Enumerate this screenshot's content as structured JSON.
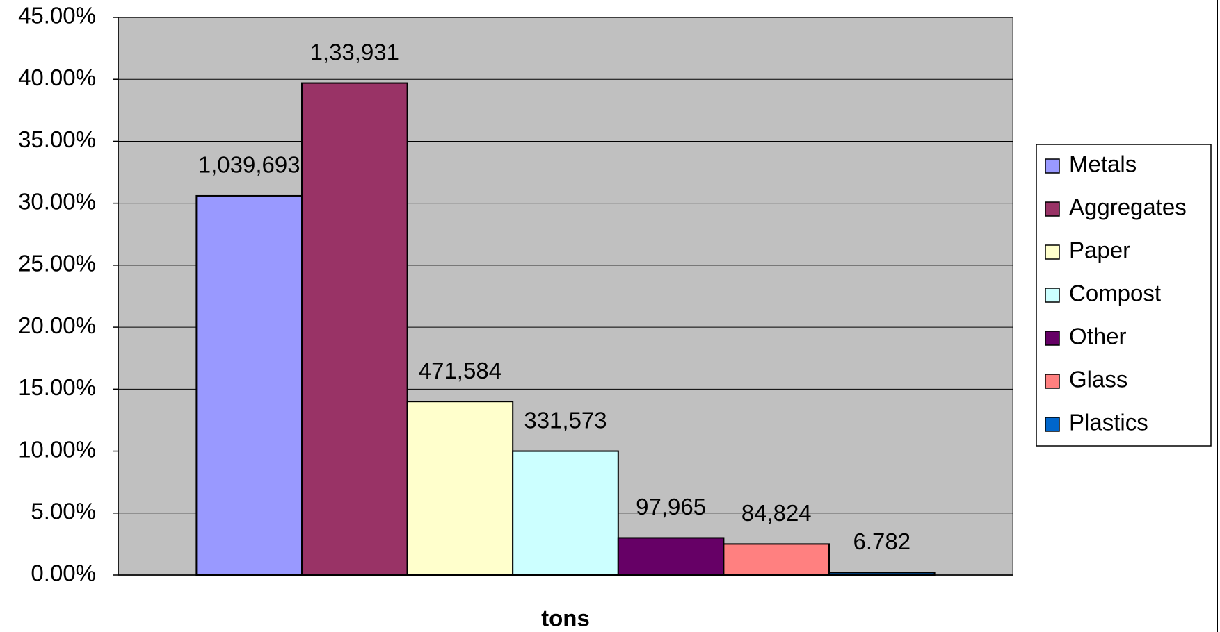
{
  "chart_data": {
    "type": "bar",
    "categories": [
      "tons"
    ],
    "series": [
      {
        "name": "Metals",
        "color": "#9999ff",
        "values": [
          30.6
        ],
        "value_labels": [
          "1,039,693"
        ]
      },
      {
        "name": "Aggregates",
        "color": "#993366",
        "values": [
          39.7
        ],
        "value_labels": [
          "1,33,931"
        ]
      },
      {
        "name": "Paper",
        "color": "#ffffcc",
        "values": [
          14.0
        ],
        "value_labels": [
          "471,584"
        ]
      },
      {
        "name": "Compost",
        "color": "#ccffff",
        "values": [
          10.0
        ],
        "value_labels": [
          "331,573"
        ]
      },
      {
        "name": "Other",
        "color": "#660066",
        "values": [
          3.0
        ],
        "value_labels": [
          "97,965"
        ]
      },
      {
        "name": "Glass",
        "color": "#ff8080",
        "values": [
          2.5
        ],
        "value_labels": [
          "84,824"
        ]
      },
      {
        "name": "Plastics",
        "color": "#0066cc",
        "values": [
          0.2
        ],
        "value_labels": [
          "6.782"
        ]
      }
    ],
    "ylim": [
      0,
      45
    ],
    "yticks": [
      {
        "value": 0,
        "label": "0.00%"
      },
      {
        "value": 5,
        "label": "5.00%"
      },
      {
        "value": 10,
        "label": "10.00%"
      },
      {
        "value": 15,
        "label": "15.00%"
      },
      {
        "value": 20,
        "label": "20.00%"
      },
      {
        "value": 25,
        "label": "25.00%"
      },
      {
        "value": 30,
        "label": "30.00%"
      },
      {
        "value": 35,
        "label": "35.00%"
      },
      {
        "value": 40,
        "label": "40.00%"
      },
      {
        "value": 45,
        "label": "45.00%"
      }
    ],
    "grid": true,
    "legend": "right",
    "plot_background": "#c0c0c0"
  }
}
